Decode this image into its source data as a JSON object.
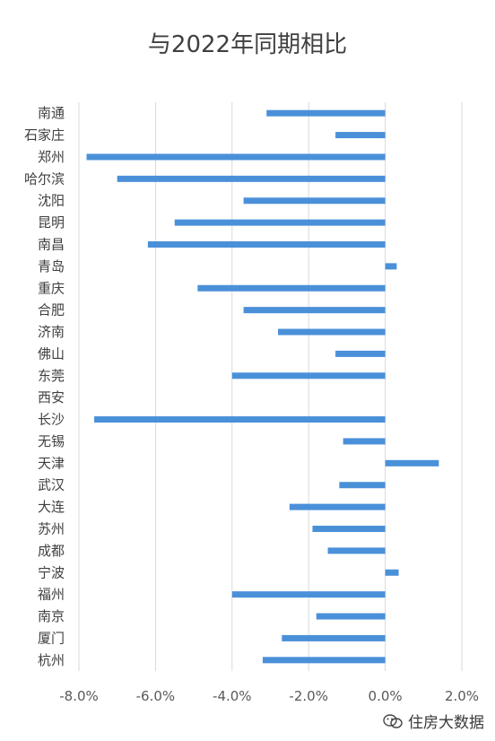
{
  "chart_data": {
    "type": "bar",
    "orientation": "horizontal",
    "title": "与2022年同期相比",
    "categories": [
      "南通",
      "石家庄",
      "郑州",
      "哈尔滨",
      "沈阳",
      "昆明",
      "南昌",
      "青岛",
      "重庆",
      "合肥",
      "济南",
      "佛山",
      "东莞",
      "西安",
      "长沙",
      "无锡",
      "天津",
      "武汉",
      "大连",
      "苏州",
      "成都",
      "宁波",
      "福州",
      "南京",
      "厦门",
      "杭州"
    ],
    "values": [
      -3.1,
      -1.3,
      -7.8,
      -7.0,
      -3.7,
      -5.5,
      -6.2,
      0.3,
      -4.9,
      -3.7,
      -2.8,
      -1.3,
      -4.0,
      0.0,
      -7.6,
      -1.1,
      1.4,
      -1.2,
      -2.5,
      -1.9,
      -1.5,
      0.35,
      -4.0,
      -1.8,
      -2.7,
      -3.2
    ],
    "xlim": [
      -0.08,
      0.02
    ],
    "xticks": [
      "-8.0%",
      "-6.0%",
      "-4.0%",
      "-2.0%",
      "0.0%",
      "2.0%"
    ],
    "grid": true,
    "bar_color": "#4a90d9",
    "grid_color": "#d9d9d9"
  },
  "watermark": {
    "text": "住房大数据",
    "icon": "wechat-icon"
  }
}
